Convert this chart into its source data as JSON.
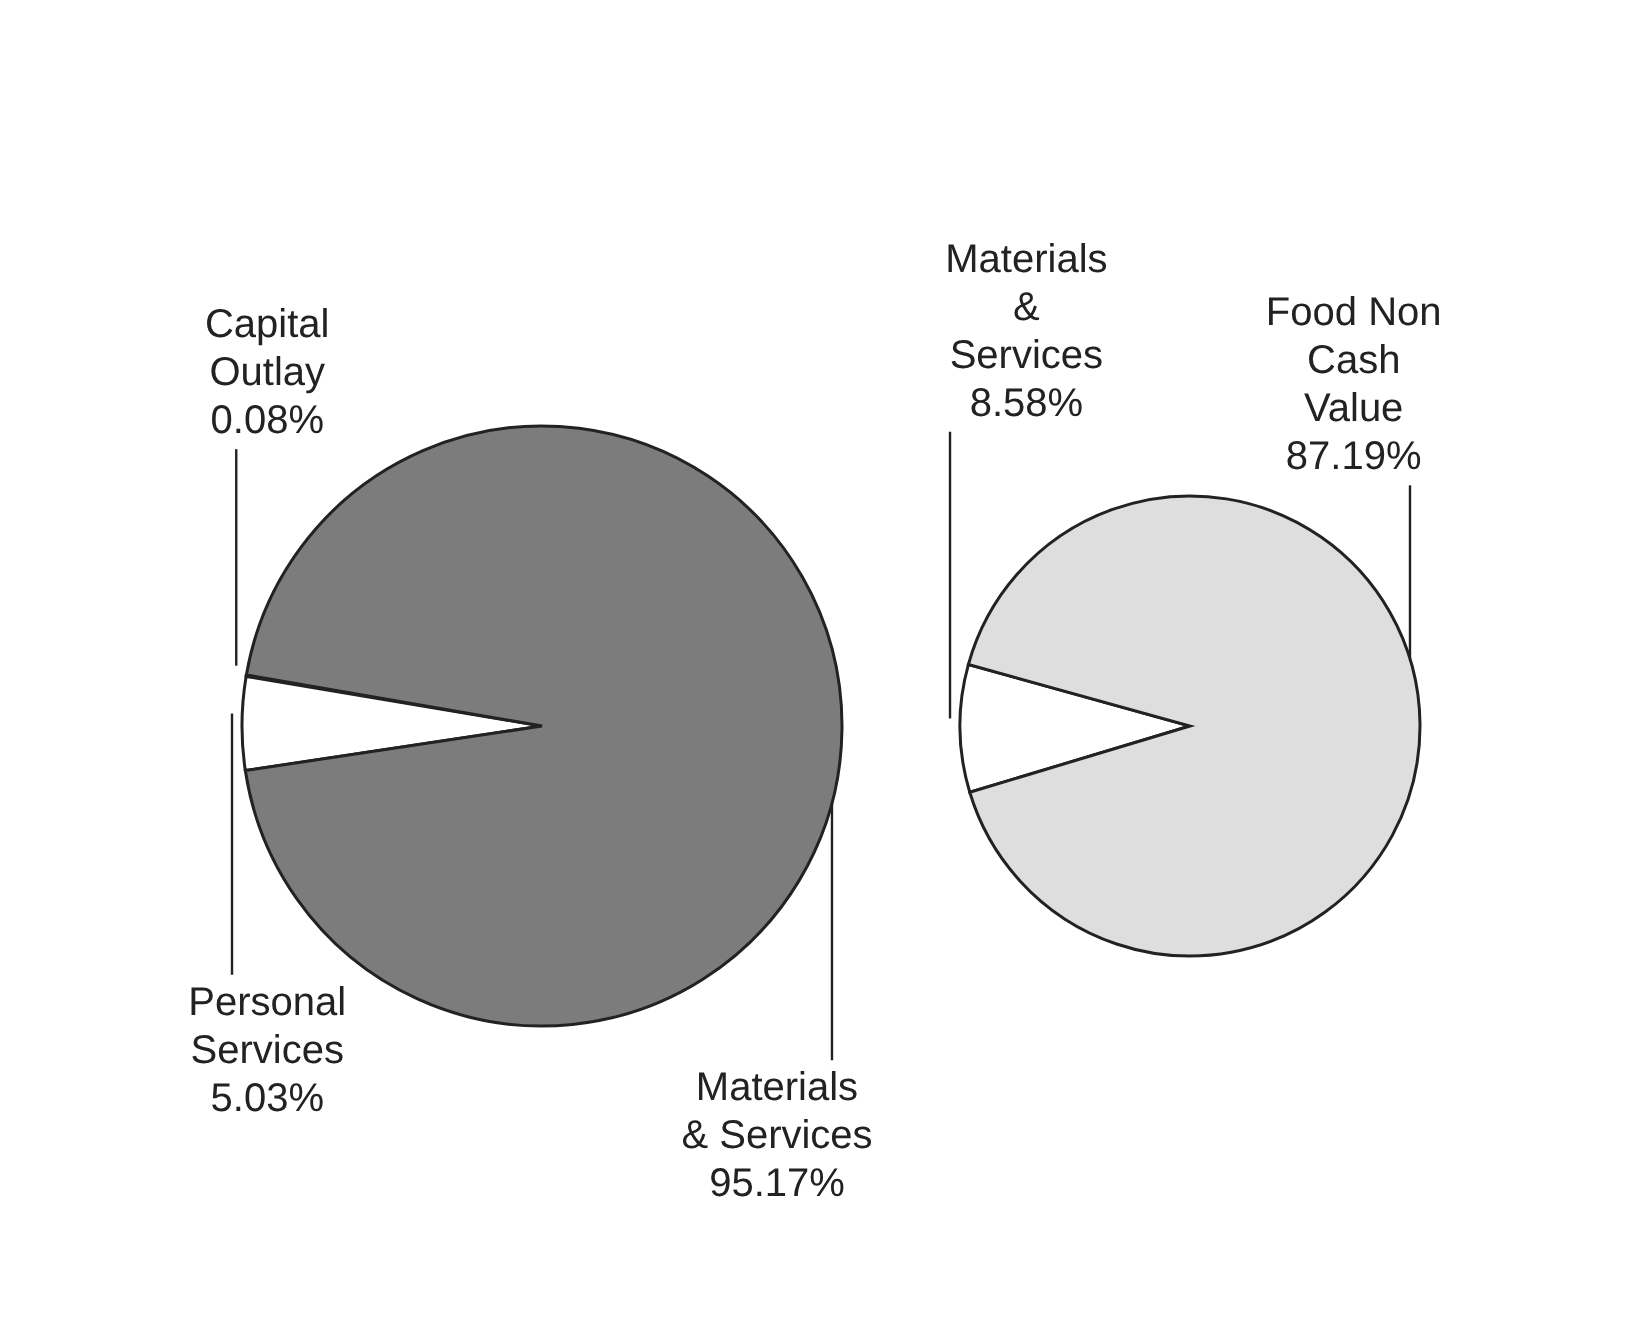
{
  "chart_data": [
    {
      "type": "pie",
      "categories": [
        "Capital Outlay",
        "Personal Services",
        "Materials & Services"
      ],
      "values": [
        0.08,
        5.03,
        95.17
      ],
      "colors": [
        "#ffffff",
        "#ffffff",
        "#7c7c7c"
      ],
      "value_labels": [
        "0.08%",
        "5.03%",
        "95.17%"
      ]
    },
    {
      "type": "pie",
      "categories": [
        "Materials & Services",
        "Food Non Cash Value"
      ],
      "values": [
        8.58,
        87.19
      ],
      "colors": [
        "#ffffff",
        "#dedede"
      ],
      "value_labels": [
        "8.58%",
        "87.19%"
      ]
    }
  ]
}
